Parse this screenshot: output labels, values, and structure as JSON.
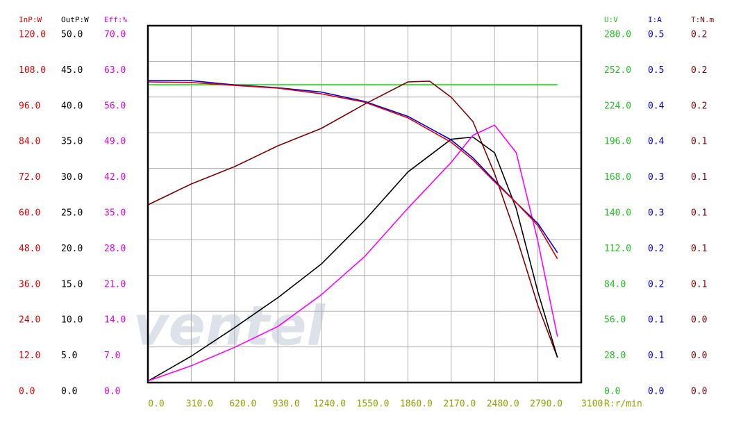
{
  "chart_data": {
    "type": "line",
    "watermark": "ventel",
    "x_label": "R:r/min",
    "x_tick_color": "#8aa800",
    "xlim": [
      0,
      3100
    ],
    "xticks": [
      {
        "value": 0,
        "label": "0.0"
      },
      {
        "value": 310,
        "label": "310.0"
      },
      {
        "value": 620,
        "label": "620.0"
      },
      {
        "value": 930,
        "label": "930.0"
      },
      {
        "value": 1240,
        "label": "1240.0"
      },
      {
        "value": 1550,
        "label": "1550.0"
      },
      {
        "value": 1860,
        "label": "1860.0"
      },
      {
        "value": 2170,
        "label": "2170.0"
      },
      {
        "value": 2480,
        "label": "2480.0"
      },
      {
        "value": 2790,
        "label": "2790.0"
      },
      3100
    ],
    "grid": true,
    "y_axes": [
      {
        "label": "InP:W",
        "side": "left",
        "color": "#e00000",
        "lim": [
          0,
          120
        ],
        "ticks": [
          {
            "value": 0,
            "label": "0.0"
          },
          {
            "value": 12,
            "label": "12.0"
          },
          {
            "value": 24,
            "label": "24.0"
          },
          {
            "value": 36,
            "label": "36.0"
          },
          {
            "value": 48,
            "label": "48.0"
          },
          {
            "value": 60,
            "label": "60.0"
          },
          {
            "value": 72,
            "label": "72.0"
          },
          {
            "value": 84,
            "label": "84.0"
          },
          {
            "value": 96,
            "label": "96.0"
          },
          {
            "value": 108,
            "label": "108.0"
          },
          {
            "value": 120,
            "label": "120.0"
          }
        ]
      },
      {
        "label": "OutP:W",
        "side": "left",
        "color": "#000000",
        "lim": [
          0,
          50
        ],
        "ticks": [
          {
            "value": 0,
            "label": "0.0"
          },
          {
            "value": 5,
            "label": "5.0"
          },
          {
            "value": 10,
            "label": "10.0"
          },
          {
            "value": 15,
            "label": "15.0"
          },
          {
            "value": 20,
            "label": "20.0"
          },
          {
            "value": 25,
            "label": "25.0"
          },
          {
            "value": 30,
            "label": "30.0"
          },
          {
            "value": 35,
            "label": "35.0"
          },
          {
            "value": 40,
            "label": "40.0"
          },
          {
            "value": 45,
            "label": "45.0"
          },
          {
            "value": 50,
            "label": "50.0"
          }
        ]
      },
      {
        "label": "Eff:%",
        "side": "left",
        "color": "#e000e0",
        "lim": [
          0,
          70
        ],
        "ticks": [
          {
            "value": 0,
            "label": "0.0"
          },
          {
            "value": 7,
            "label": "7.0"
          },
          {
            "value": 14,
            "label": "14.0"
          },
          {
            "value": 21,
            "label": "21.0"
          },
          {
            "value": 28,
            "label": "28.0"
          },
          {
            "value": 35,
            "label": "35.0"
          },
          {
            "value": 42,
            "label": "42.0"
          },
          {
            "value": 49,
            "label": "49.0"
          },
          {
            "value": 56,
            "label": "56.0"
          },
          {
            "value": 63,
            "label": "63.0"
          },
          {
            "value": 70,
            "label": "70.0"
          }
        ]
      },
      {
        "label": "U:V",
        "side": "right",
        "color": "#20c020",
        "lim": [
          0,
          280
        ],
        "ticks": [
          {
            "value": 0,
            "label": "0.0"
          },
          {
            "value": 28,
            "label": "28.0"
          },
          {
            "value": 56,
            "label": "56.0"
          },
          {
            "value": 84,
            "label": "84.0"
          },
          {
            "value": 112,
            "label": "112.0"
          },
          {
            "value": 140,
            "label": "140.0"
          },
          {
            "value": 168,
            "label": "168.0"
          },
          {
            "value": 196,
            "label": "196.0"
          },
          {
            "value": 224,
            "label": "224.0"
          },
          {
            "value": 252,
            "label": "252.0"
          },
          {
            "value": 280,
            "label": "280.0"
          }
        ]
      },
      {
        "label": "I:A",
        "side": "right",
        "color": "#0000d0",
        "lim": [
          0,
          0.5
        ],
        "ticks": [
          {
            "value": 0,
            "label": "0.0"
          },
          {
            "value": 0.05,
            "label": "0.1"
          },
          {
            "value": 0.1,
            "label": "0.1"
          },
          {
            "value": 0.15,
            "label": "0.2"
          },
          {
            "value": 0.2,
            "label": "0.2"
          },
          {
            "value": 0.25,
            "label": "0.3"
          },
          {
            "value": 0.3,
            "label": "0.3"
          },
          {
            "value": 0.35,
            "label": "0.4"
          },
          {
            "value": 0.4,
            "label": "0.4"
          },
          {
            "value": 0.45,
            "label": "0.5"
          },
          {
            "value": 0.5,
            "label": "0.5"
          }
        ]
      },
      {
        "label": "T:N.m",
        "side": "right",
        "color": "#800000",
        "lim": [
          0,
          0.2
        ],
        "ticks": [
          {
            "value": 0,
            "label": "0.0"
          },
          {
            "value": 0.02,
            "label": "0.0"
          },
          {
            "value": 0.04,
            "label": "0.0"
          },
          {
            "value": 0.06,
            "label": "0.1"
          },
          {
            "value": 0.08,
            "label": "0.1"
          },
          {
            "value": 0.1,
            "label": "0.1"
          },
          {
            "value": 0.12,
            "label": "0.1"
          },
          {
            "value": 0.14,
            "label": "0.1"
          },
          {
            "value": 0.16,
            "label": "0.2"
          },
          {
            "value": 0.18,
            "label": "0.2"
          },
          {
            "value": 0.2,
            "label": "0.2"
          }
        ]
      }
    ],
    "series": [
      {
        "axis": 3,
        "color": "#00e000",
        "x": [
          0,
          2930
        ],
        "values": [
          233.7,
          233.7
        ]
      },
      {
        "axis": 5,
        "color": "#800000",
        "x": [
          0,
          310,
          620,
          930,
          1240,
          1550,
          1860,
          2015,
          2170,
          2325,
          2480,
          2635,
          2790,
          2930
        ],
        "values": [
          0.0996,
          0.1113,
          0.121,
          0.1327,
          0.1424,
          0.156,
          0.1685,
          0.1689,
          0.1599,
          0.1463,
          0.1171,
          0.0821,
          0.0432,
          0.014
        ]
      },
      {
        "axis": 1,
        "color": "#000000",
        "x": [
          0,
          310,
          620,
          930,
          1240,
          1550,
          1860,
          2170,
          2325,
          2480,
          2635,
          2790,
          2930
        ],
        "values": [
          0.2,
          3.7,
          7.7,
          11.9,
          16.6,
          22.7,
          29.5,
          34.1,
          34.4,
          32.2,
          24.4,
          12.7,
          3.5
        ]
      },
      {
        "axis": 2,
        "color": "#ff00ff",
        "x": [
          0,
          310,
          620,
          930,
          1240,
          1550,
          1860,
          2170,
          2325,
          2480,
          2635,
          2790,
          2930
        ],
        "values": [
          0.3,
          3.3,
          6.9,
          11.0,
          17.2,
          24.7,
          34.2,
          43.2,
          48.5,
          50.5,
          45.1,
          27.7,
          9.0
        ]
      },
      {
        "axis": 4,
        "color": "#0000e0",
        "x": [
          0,
          310,
          620,
          930,
          1240,
          1550,
          1860,
          2170,
          2325,
          2480,
          2635,
          2790,
          2930
        ],
        "values": [
          0.423,
          0.423,
          0.417,
          0.413,
          0.407,
          0.394,
          0.373,
          0.34,
          0.315,
          0.283,
          0.252,
          0.223,
          0.182
        ]
      },
      {
        "axis": 0,
        "color": "#e00000",
        "x": [
          0,
          310,
          620,
          930,
          1240,
          1550,
          1860,
          2170,
          2325,
          2480,
          2635,
          2790,
          2930
        ],
        "values": [
          101.1,
          100.9,
          99.9,
          99.0,
          97.1,
          94.3,
          89.0,
          80.8,
          74.9,
          67.5,
          60.5,
          52.8,
          41.6
        ]
      }
    ]
  }
}
